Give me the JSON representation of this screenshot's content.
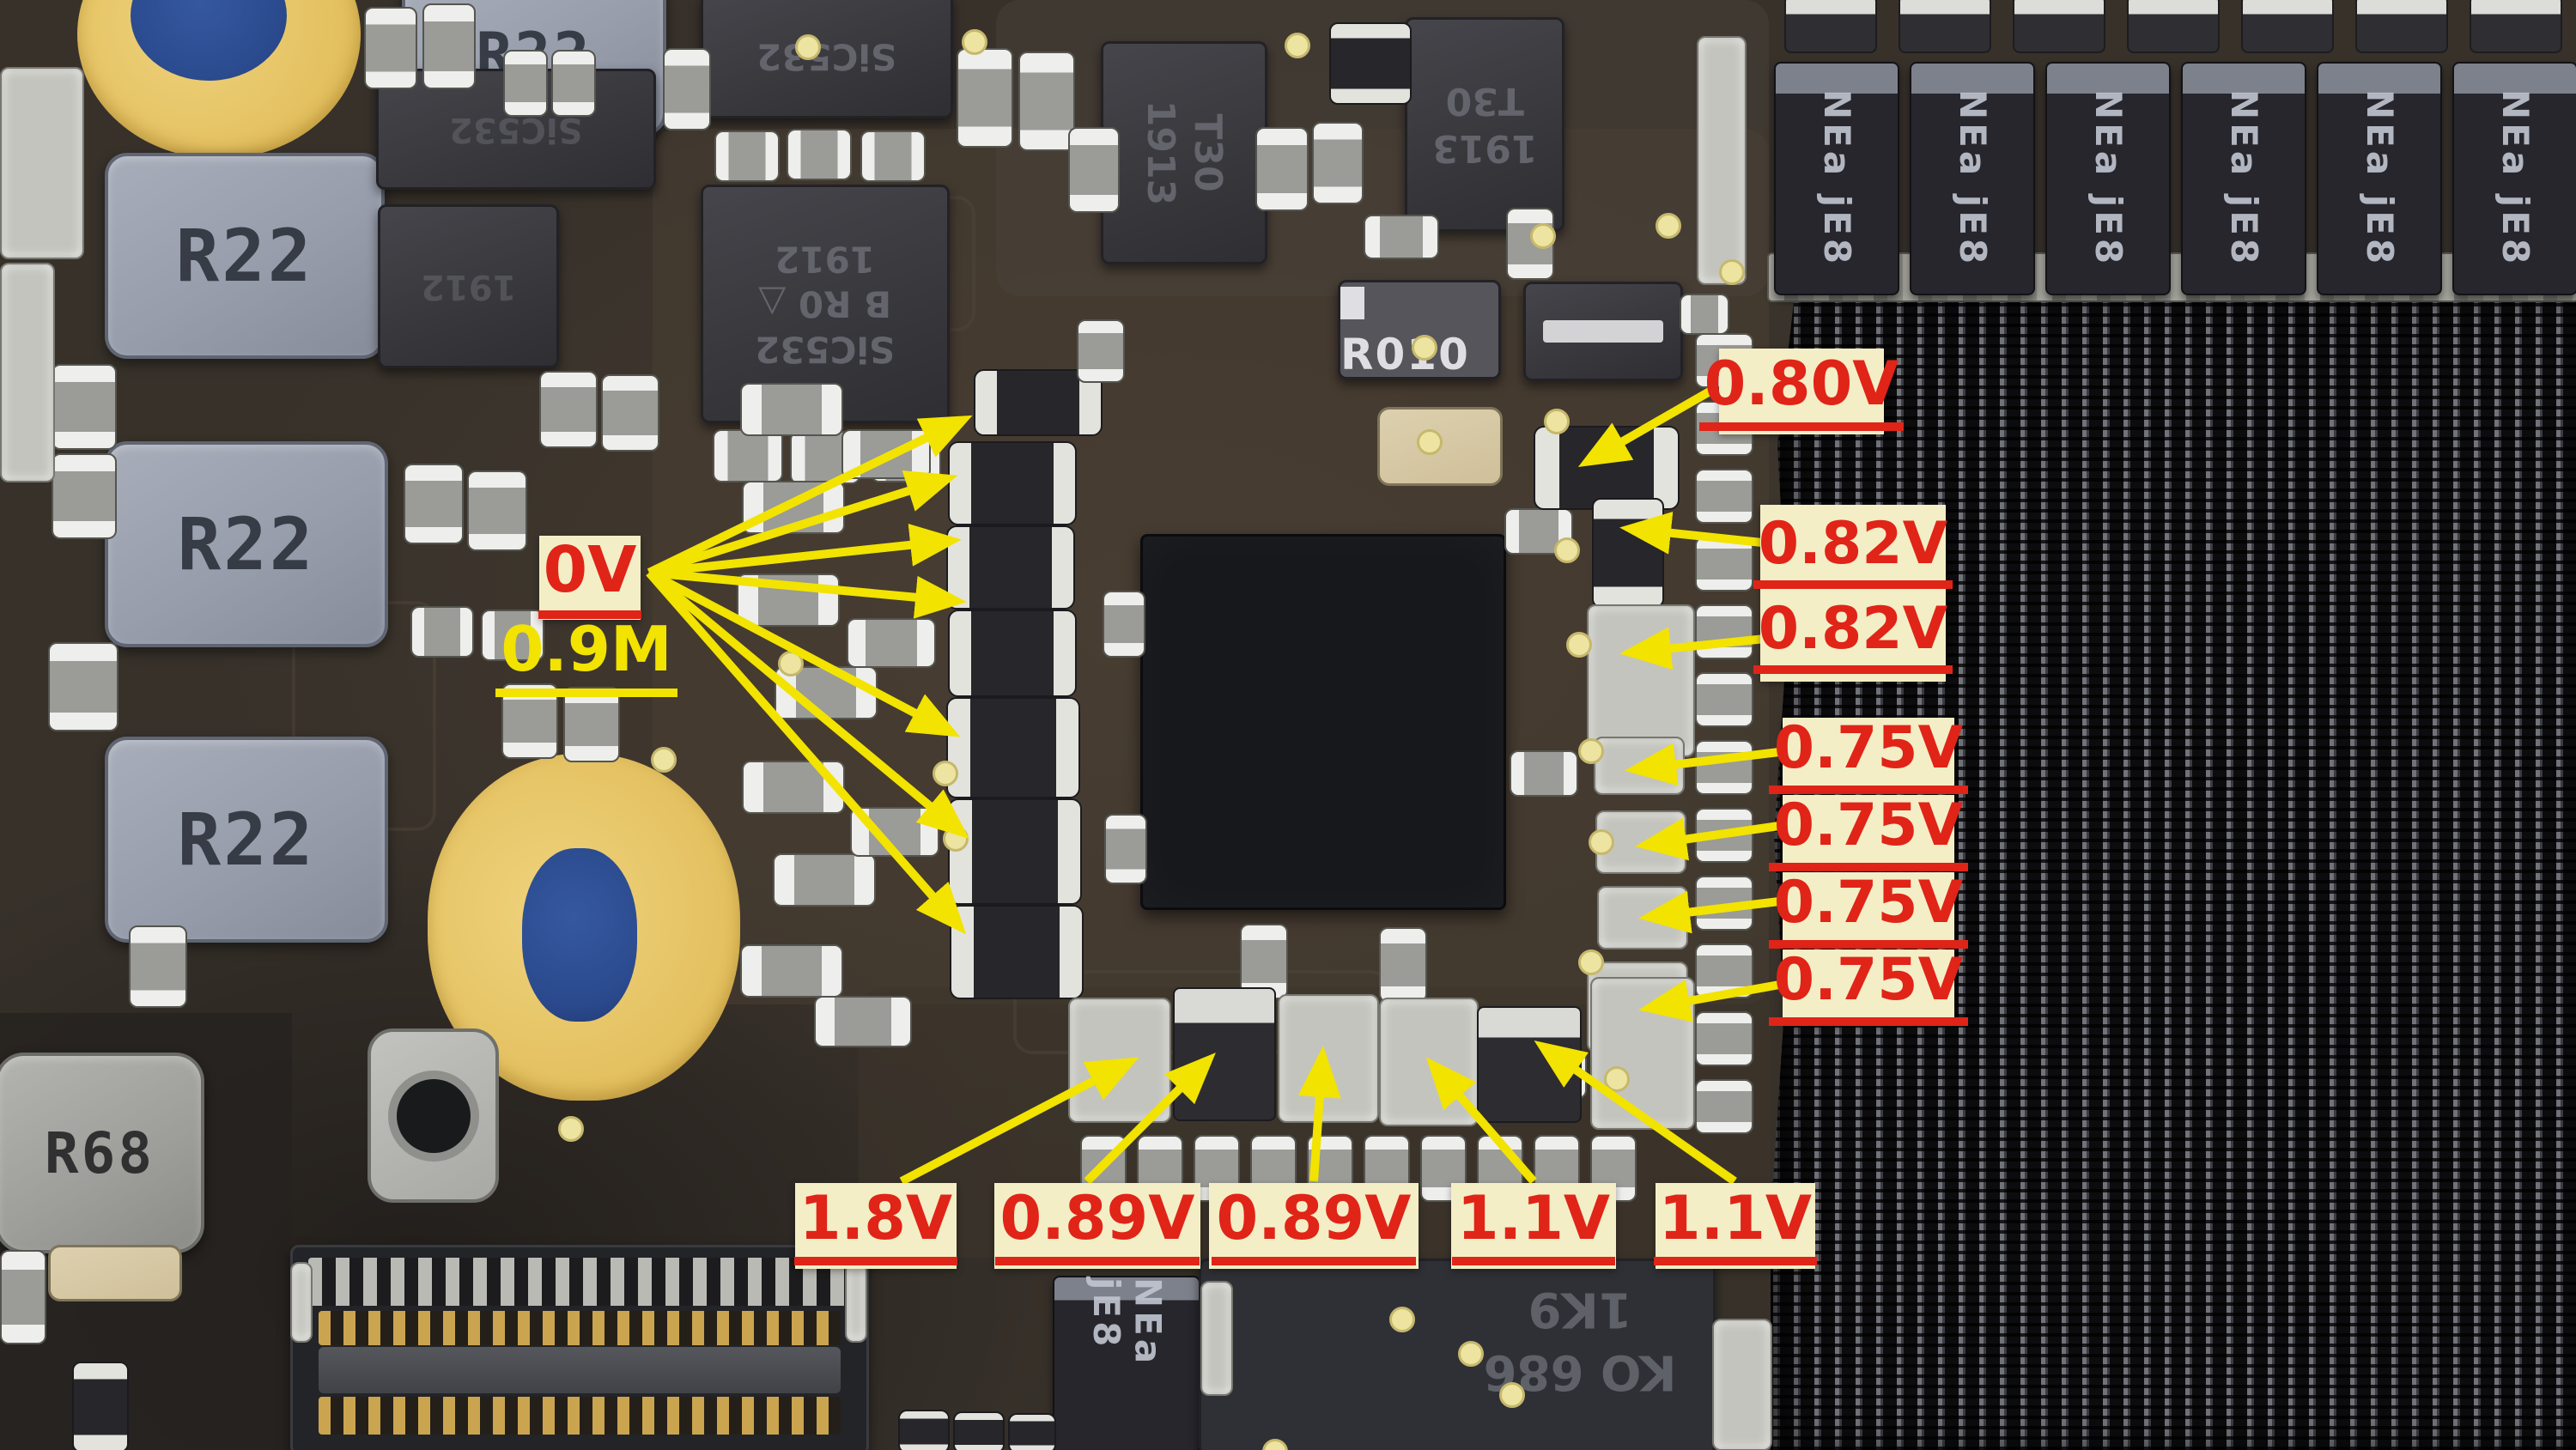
{
  "image_description": "Annotated macro photograph of a laptop logic board used for voltage-rail diagnosis",
  "labels": {
    "zero_v": "0V",
    "zero_nine_m": "0.9M",
    "v080": "0.80V",
    "v082_1": "0.82V",
    "v082_2": "0.82V",
    "v075_1": "0.75V",
    "v075_2": "0.75V",
    "v075_3": "0.75V",
    "v075_4": "0.75V",
    "v18": "1.8V",
    "v089_1": "0.89V",
    "v089_2": "0.89V",
    "v11_1": "1.1V",
    "v11_2": "1.1V"
  },
  "markings": {
    "inductor_left": "R22",
    "inductor_bottom": "R68",
    "sense_resistor": "R010",
    "mosfet": "SiC532",
    "mosfet_line2": "B R0 △",
    "mosfet_date": "1912",
    "qfn_line1": "T30",
    "qfn_line2": "1913",
    "cap_line1": "NEa",
    "cap_line2": "jE8",
    "bottom_ic_1": "KO 686",
    "bottom_ic_2": "1K9"
  },
  "colors": {
    "arrow_yellow": "#f2e300",
    "label_background": "#f4eec6",
    "label_red": "#e02418",
    "label_yellow": "#f2e300",
    "pcb_brown": "#37312a",
    "mesh_black": "#121214",
    "pad_gold": "#e3c05f",
    "hole_blue": "#2b4a8e"
  }
}
